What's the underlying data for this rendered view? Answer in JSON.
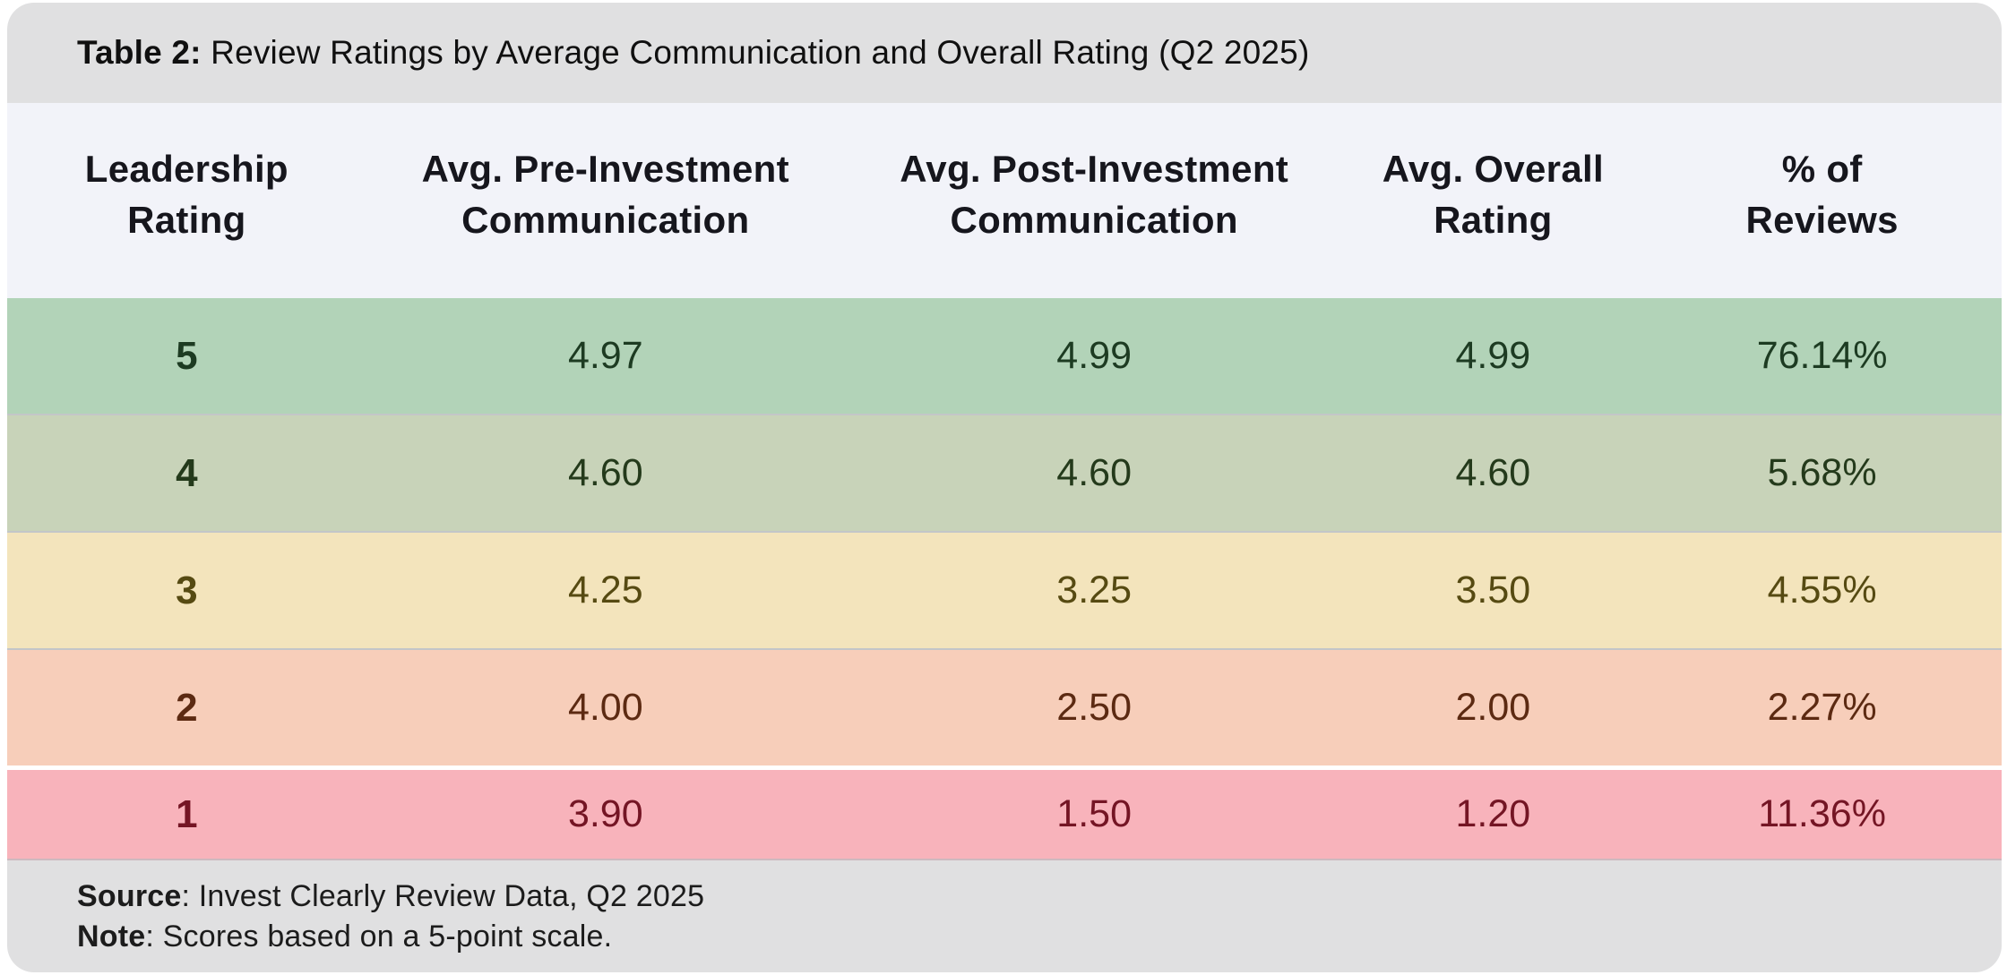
{
  "title": {
    "prefix": "Table 2:",
    "text": " Review Ratings by Average Communication and Overall Rating (Q2 2025)"
  },
  "header": {
    "columns": [
      {
        "line1": "Leadership",
        "line2": "Rating"
      },
      {
        "line1": "Avg. Pre-Investment",
        "line2": "Communication"
      },
      {
        "line1": "Avg. Post-Investment",
        "line2": "Communication"
      },
      {
        "line1": "Avg. Overall",
        "line2": "Rating"
      },
      {
        "line1": "% of",
        "line2": "Reviews"
      }
    ]
  },
  "rows": [
    {
      "rating": "5",
      "values": [
        "4.97",
        "4.99",
        "4.99",
        "76.14%"
      ],
      "bg": "#b2d3b8",
      "fg": "#1d3b22"
    },
    {
      "rating": "4",
      "values": [
        "4.60",
        "4.60",
        "4.60",
        "5.68%"
      ],
      "bg": "#c8d3b9",
      "fg": "#243a1b"
    },
    {
      "rating": "3",
      "values": [
        "4.25",
        "3.25",
        "3.50",
        "4.55%"
      ],
      "bg": "#f3e4bc",
      "fg": "#564a12"
    },
    {
      "rating": "2",
      "values": [
        "4.00",
        "2.50",
        "2.00",
        "2.27%"
      ],
      "bg": "#f7ceba",
      "fg": "#5c2a12"
    },
    {
      "rating": "1",
      "values": [
        "3.90",
        "1.50",
        "1.20",
        "11.36%"
      ],
      "bg": "#f8b3bb",
      "fg": "#741524"
    }
  ],
  "footer": {
    "source_label": "Source",
    "source_rest": ": Invest Clearly Review Data, Q2 2025",
    "note_label": "Note",
    "note_rest": ": Scores based on a 5-point scale."
  },
  "colors": {
    "page_bg": "#ffffff",
    "band_bg": "#e0e0e1",
    "header_bg": "#f2f3f9",
    "title_fg": "#101010",
    "header_fg": "#16161d",
    "footer_fg": "#1c1c1c"
  },
  "chart_data": {
    "type": "table",
    "title": "Table 2: Review Ratings by Average Communication and Overall Rating (Q2 2025)",
    "columns": [
      "Leadership Rating",
      "Avg. Pre-Investment Communication",
      "Avg. Post-Investment Communication",
      "Avg. Overall Rating",
      "% of Reviews"
    ],
    "rows": [
      [
        5,
        4.97,
        4.99,
        4.99,
        "76.14%"
      ],
      [
        4,
        4.6,
        4.6,
        4.6,
        "5.68%"
      ],
      [
        3,
        4.25,
        3.25,
        3.5,
        "4.55%"
      ],
      [
        2,
        4.0,
        2.5,
        2.0,
        "2.27%"
      ],
      [
        1,
        3.9,
        1.5,
        1.2,
        "11.36%"
      ]
    ],
    "row_color_scale": [
      "#b2d3b8",
      "#c8d3b9",
      "#f3e4bc",
      "#f7ceba",
      "#f8b3bb"
    ],
    "source": "Invest Clearly Review Data, Q2 2025",
    "note": "Scores based on a 5-point scale.",
    "layout": {
      "header_position": "top",
      "values_align": "center"
    }
  }
}
